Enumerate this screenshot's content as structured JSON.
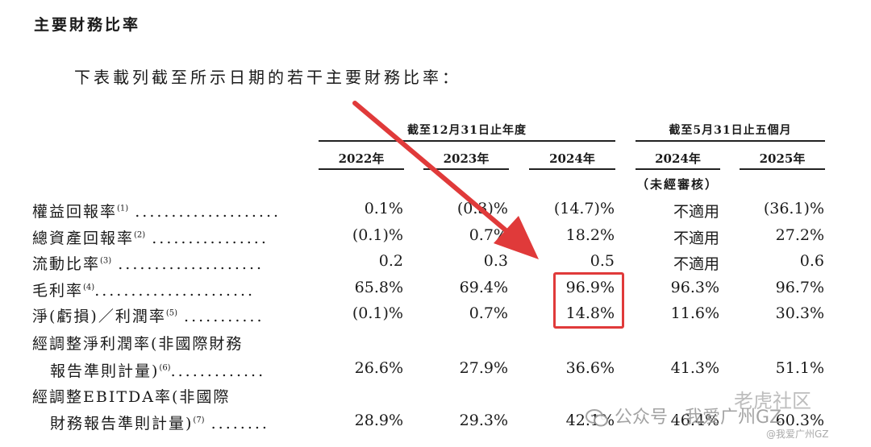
{
  "section_title": "主要財務比率",
  "intro_text": "下表載列截至所示日期的若干主要財務比率：",
  "column_groups": [
    {
      "label": "截至12月31日止年度"
    },
    {
      "label": "截至5月31日止五個月"
    }
  ],
  "years": [
    "2022年",
    "2023年",
    "2024年",
    "2024年",
    "2025年"
  ],
  "unaudited_note": "（未經審核）",
  "rows": [
    {
      "label": "權益回報率",
      "note": "(1)",
      "dots": "....................",
      "values": [
        "0.1%",
        "(0.3)%",
        "(14.7)%",
        "不適用",
        "(36.1)%"
      ]
    },
    {
      "label": "總資產回報率",
      "note": "(2)",
      "dots": "................",
      "values": [
        "(0.1)%",
        "0.7%",
        "18.2%",
        "不適用",
        "27.2%"
      ]
    },
    {
      "label": "流動比率",
      "note": "(3)",
      "dots": "....................",
      "values": [
        "0.2",
        "0.3",
        "0.5",
        "不適用",
        "0.6"
      ]
    },
    {
      "label": "毛利率",
      "note": "(4)",
      "dots": "......................",
      "values": [
        "65.8%",
        "69.4%",
        "96.9%",
        "96.3%",
        "96.7%"
      ]
    },
    {
      "label": "淨(虧損)／利潤率",
      "note": "(5)",
      "dots": "...........",
      "values": [
        "(0.1)%",
        "0.7%",
        "14.8%",
        "11.6%",
        "30.3%"
      ]
    },
    {
      "label_line1": "經調整淨利潤率(非國際財務",
      "label_line2": "報告準則計量)",
      "note": "(6)",
      "dots": ".............",
      "values": [
        "26.6%",
        "27.9%",
        "36.6%",
        "41.3%",
        "51.1%"
      ]
    },
    {
      "label_line1": "經調整EBITDA率(非國際",
      "label_line2": "財務報告準則計量)",
      "note": "(7)",
      "dots": "........",
      "values": [
        "28.9%",
        "29.3%",
        "42.1%",
        "46.4%",
        "60.3%"
      ]
    }
  ],
  "watermark": {
    "text": "公众号 · 我爱广州GZ",
    "brand": "老虎社区",
    "handle": "@我爱广州GZ"
  },
  "colors": {
    "highlight": "#e03a3a",
    "text": "#1a1a1a"
  }
}
